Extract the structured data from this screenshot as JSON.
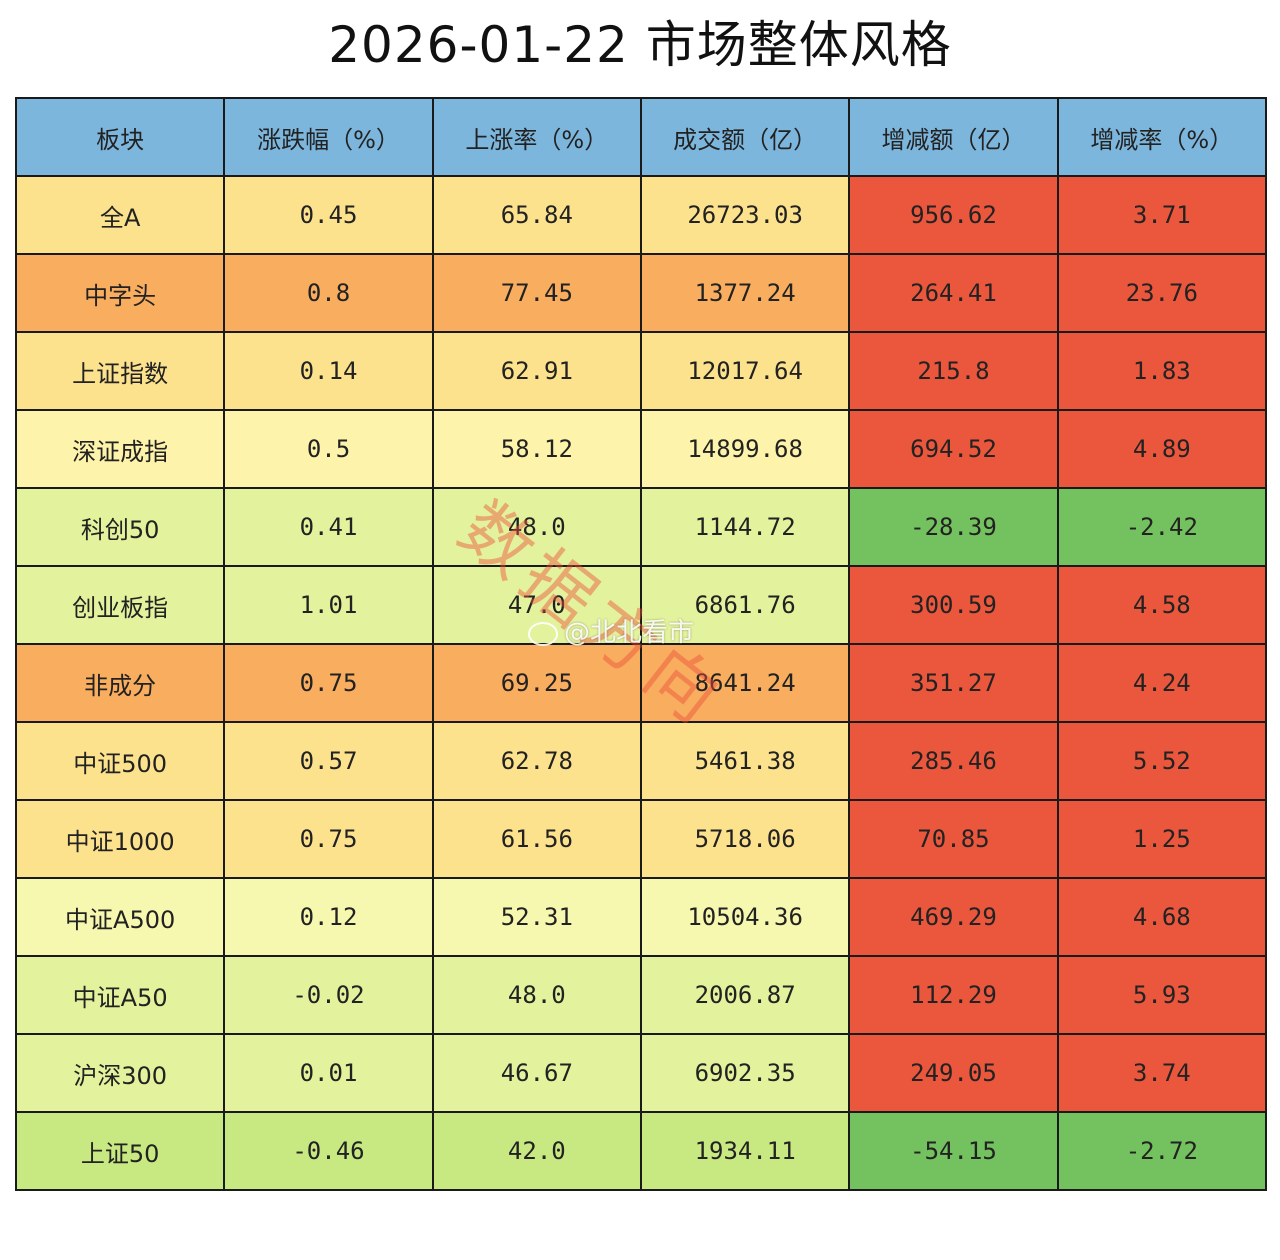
{
  "title": "2026-01-22  市场整体风格",
  "table": {
    "headers": [
      "板块",
      "涨跌幅（%）",
      "上涨率（%）",
      "成交额（亿）",
      "增减额（亿）",
      "增减率（%）"
    ],
    "rows": [
      {
        "name": "全A",
        "chg": "0.45",
        "up_rate": "65.84",
        "turnover": "26723.03",
        "delta": "956.62",
        "delta_rate": "3.71"
      },
      {
        "name": "中字头",
        "chg": "0.8",
        "up_rate": "77.45",
        "turnover": "1377.24",
        "delta": "264.41",
        "delta_rate": "23.76"
      },
      {
        "name": "上证指数",
        "chg": "0.14",
        "up_rate": "62.91",
        "turnover": "12017.64",
        "delta": "215.8",
        "delta_rate": "1.83"
      },
      {
        "name": "深证成指",
        "chg": "0.5",
        "up_rate": "58.12",
        "turnover": "14899.68",
        "delta": "694.52",
        "delta_rate": "4.89"
      },
      {
        "name": "科创50",
        "chg": "0.41",
        "up_rate": "48.0",
        "turnover": "1144.72",
        "delta": "-28.39",
        "delta_rate": "-2.42"
      },
      {
        "name": "创业板指",
        "chg": "1.01",
        "up_rate": "47.0",
        "turnover": "6861.76",
        "delta": "300.59",
        "delta_rate": "4.58"
      },
      {
        "name": "非成分",
        "chg": "0.75",
        "up_rate": "69.25",
        "turnover": "8641.24",
        "delta": "351.27",
        "delta_rate": "4.24"
      },
      {
        "name": "中证500",
        "chg": "0.57",
        "up_rate": "62.78",
        "turnover": "5461.38",
        "delta": "285.46",
        "delta_rate": "5.52"
      },
      {
        "name": "中证1000",
        "chg": "0.75",
        "up_rate": "61.56",
        "turnover": "5718.06",
        "delta": "70.85",
        "delta_rate": "1.25"
      },
      {
        "name": "中证A500",
        "chg": "0.12",
        "up_rate": "52.31",
        "turnover": "10504.36",
        "delta": "469.29",
        "delta_rate": "4.68"
      },
      {
        "name": "中证A50",
        "chg": "-0.02",
        "up_rate": "48.0",
        "turnover": "2006.87",
        "delta": "112.29",
        "delta_rate": "5.93"
      },
      {
        "name": "沪深300",
        "chg": "0.01",
        "up_rate": "46.67",
        "turnover": "6902.35",
        "delta": "249.05",
        "delta_rate": "3.74"
      },
      {
        "name": "上证50",
        "chg": "-0.46",
        "up_rate": "42.0",
        "turnover": "1934.11",
        "delta": "-54.15",
        "delta_rate": "-2.72"
      }
    ],
    "row_colors": [
      "#fde28e",
      "#f9ad5e",
      "#fde28e",
      "#fdf3aa",
      "#e3f29c",
      "#e3f29c",
      "#f9ad5e",
      "#fde28e",
      "#fde28e",
      "#f6f8b0",
      "#e3f29c",
      "#e3f29c",
      "#c8e882"
    ],
    "colors": {
      "header": "#7db6dd",
      "positive_delta": "#ea573d",
      "negative_delta": "#74c15f"
    }
  },
  "watermark": {
    "text": "数据方向",
    "weibo": "@北北看市"
  }
}
